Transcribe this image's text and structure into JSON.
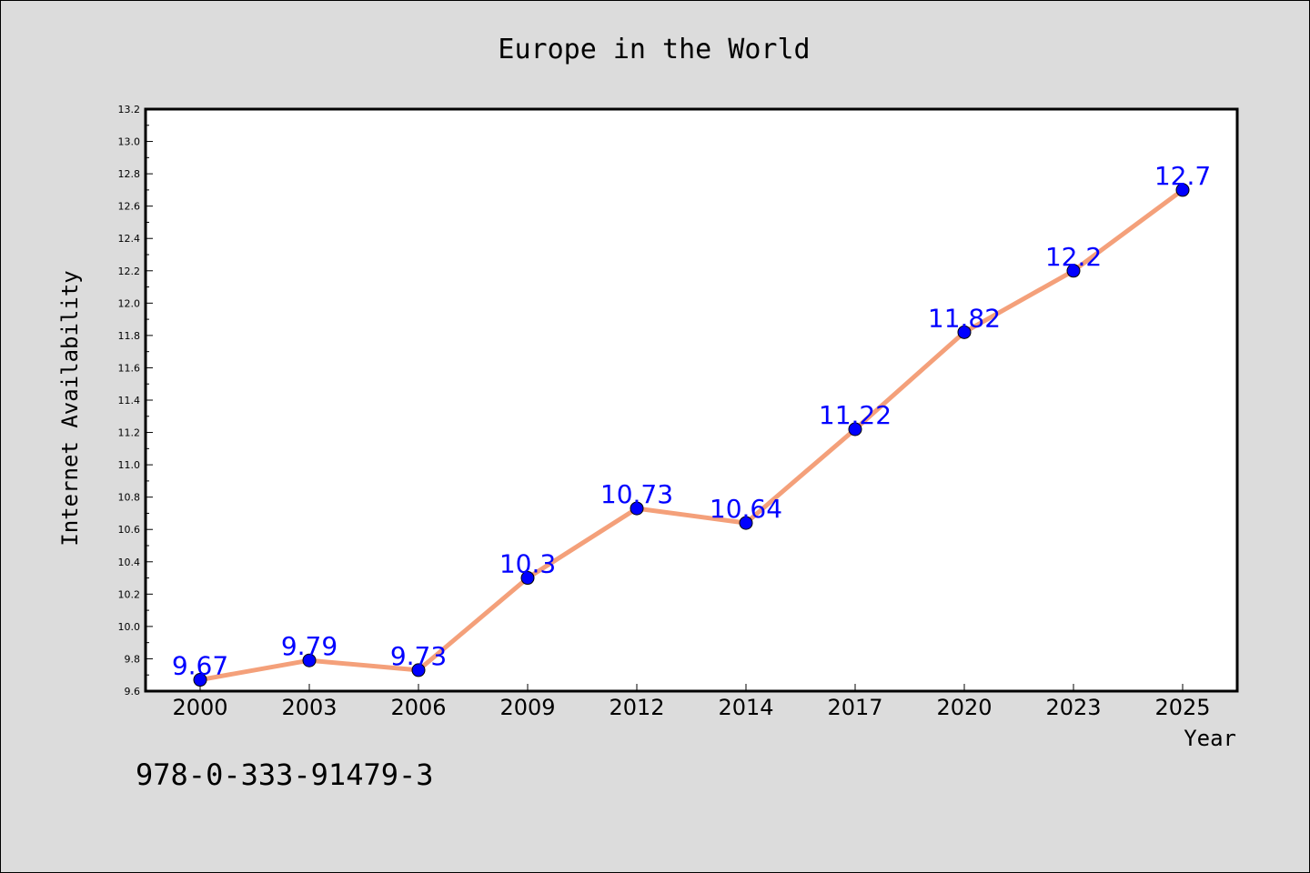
{
  "chart_data": {
    "type": "line",
    "title": "Europe in the World",
    "xlabel": "Year",
    "ylabel": "Internet Availability",
    "categories": [
      "2000",
      "2003",
      "2006",
      "2009",
      "2012",
      "2014",
      "2017",
      "2020",
      "2023",
      "2025"
    ],
    "series": [
      {
        "values": [
          9.67,
          9.79,
          9.73,
          10.3,
          10.73,
          10.64,
          11.22,
          11.82,
          12.2,
          12.7
        ],
        "data_labels": [
          "9.67",
          "9.79",
          "9.73",
          "10.3",
          "10.73",
          "10.64",
          "11.22",
          "11.82",
          "12.2",
          "12.7"
        ]
      }
    ],
    "ylim": [
      9.6,
      13.2
    ],
    "yticks": [
      "9.6",
      "9.8",
      "10.0",
      "10.2",
      "10.4",
      "10.6",
      "10.8",
      "11.0",
      "11.2",
      "11.4",
      "11.6",
      "11.8",
      "12.0",
      "12.2",
      "12.4",
      "12.6",
      "12.8",
      "13.0",
      "13.2"
    ],
    "grid": false,
    "legend": "none",
    "colors": {
      "line": "#f4a07a",
      "marker": "#0000ff",
      "data_label": "#0000ff",
      "figure_background": "#dcdcdc",
      "plot_background": "#ffffff"
    }
  },
  "footer_text": "978-0-333-91479-3"
}
